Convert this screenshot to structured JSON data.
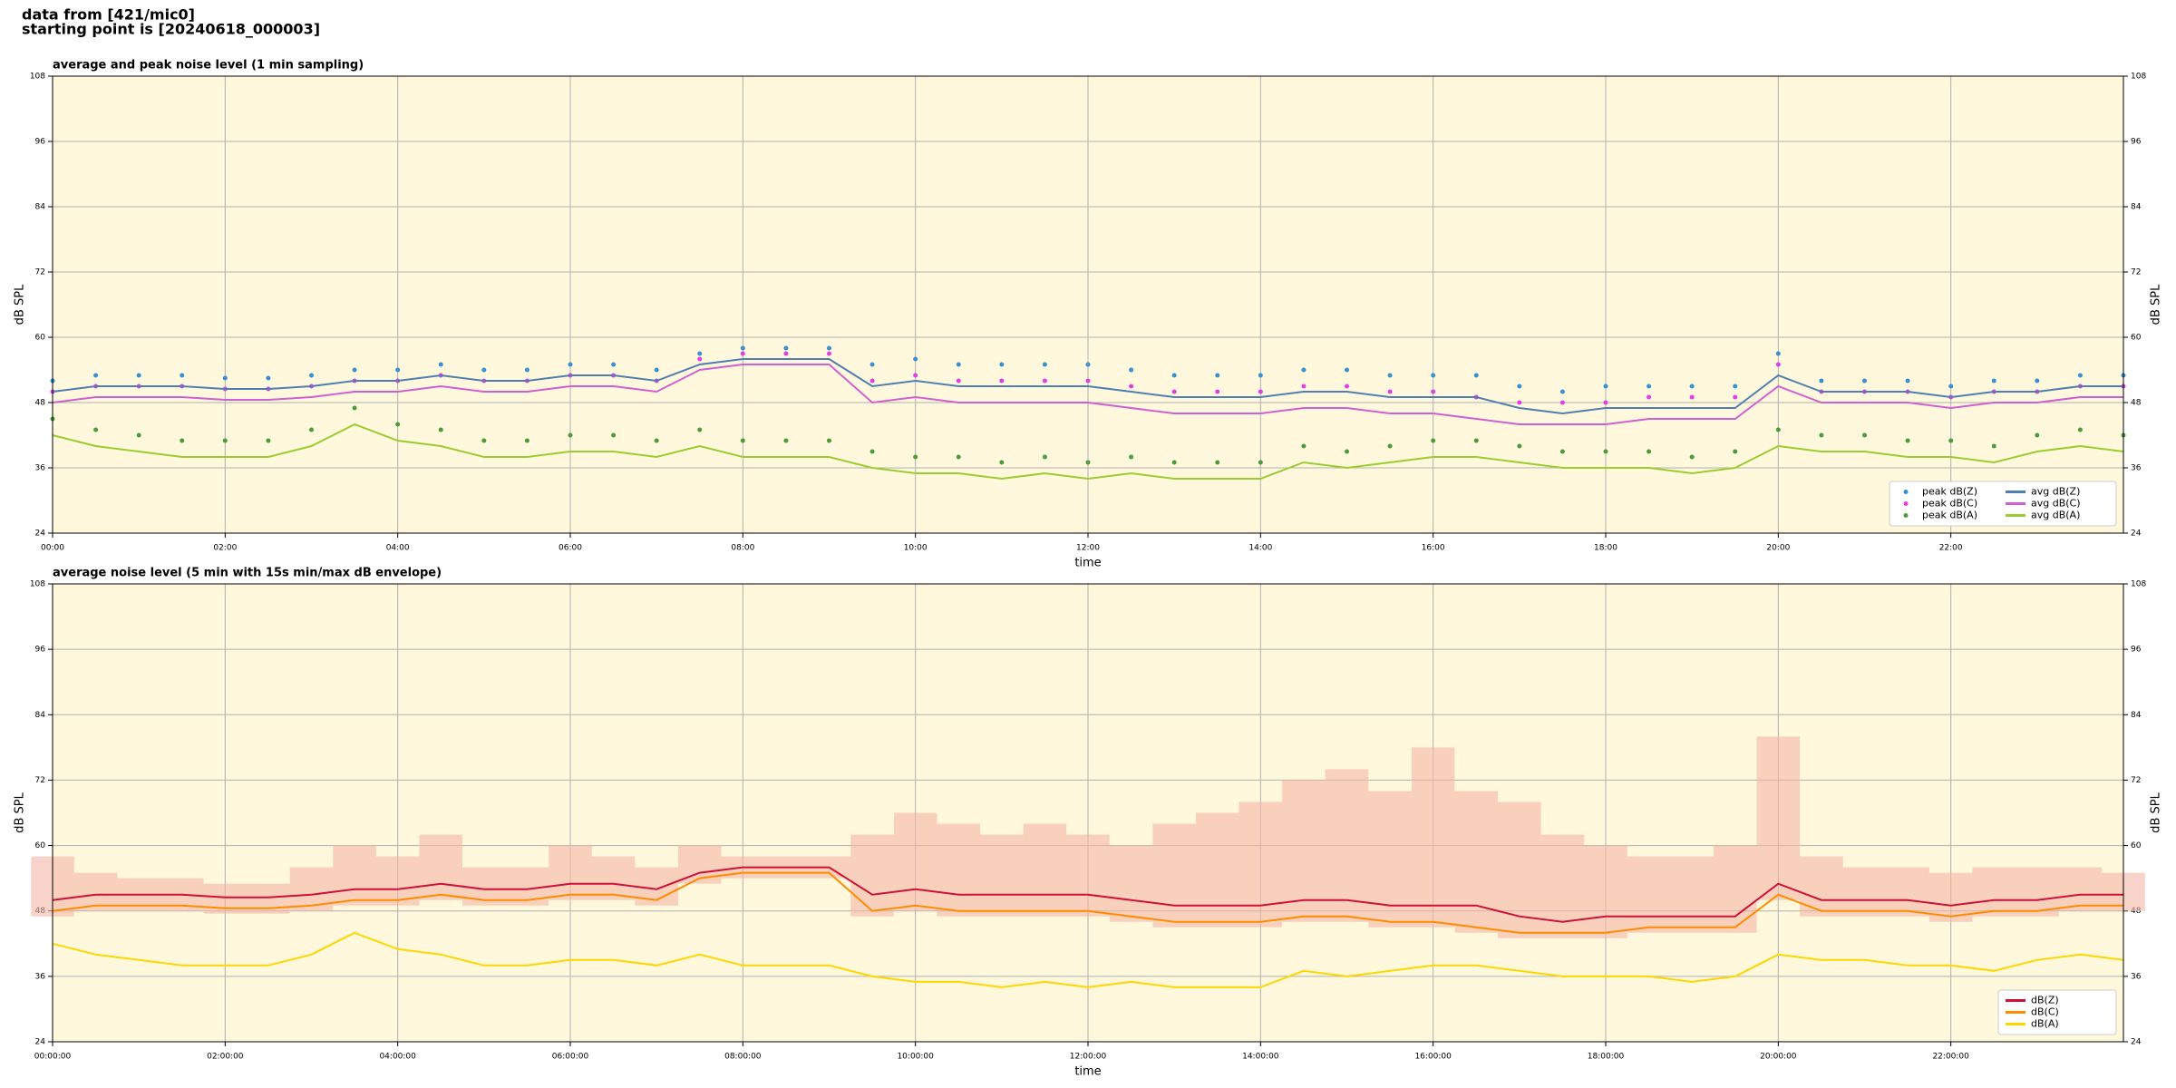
{
  "header": {
    "lines": [
      "data from [421/mic0]",
      "starting point is [20240618_000003]"
    ]
  },
  "chart_data": [
    {
      "type": "line",
      "title": "average and peak noise level (1 min sampling)",
      "xlabel": "time",
      "ylabel": "dB SPL",
      "xlim": [
        0,
        24
      ],
      "ylim": [
        24,
        108
      ],
      "yticks": [
        24,
        36,
        48,
        60,
        72,
        84,
        96,
        108
      ],
      "xticks": [
        {
          "value": 0,
          "label": "00:00"
        },
        {
          "value": 2,
          "label": "02:00"
        },
        {
          "value": 4,
          "label": "04:00"
        },
        {
          "value": 6,
          "label": "06:00"
        },
        {
          "value": 8,
          "label": "08:00"
        },
        {
          "value": 10,
          "label": "10:00"
        },
        {
          "value": 12,
          "label": "12:00"
        },
        {
          "value": 14,
          "label": "14:00"
        },
        {
          "value": 16,
          "label": "16:00"
        },
        {
          "value": 18,
          "label": "18:00"
        },
        {
          "value": 20,
          "label": "20:00"
        },
        {
          "value": 22,
          "label": "22:00"
        }
      ],
      "grid": true,
      "background": "#fff8dc",
      "legend": "lower right",
      "legend_columns": 2,
      "x": [
        0,
        0.5,
        1,
        1.5,
        2,
        2.5,
        3,
        3.5,
        4,
        4.5,
        5,
        5.5,
        6,
        6.5,
        7,
        7.5,
        8,
        8.5,
        9,
        9.5,
        10,
        10.5,
        11,
        11.5,
        12,
        12.5,
        13,
        13.5,
        14,
        14.5,
        15,
        15.5,
        16,
        16.5,
        17,
        17.5,
        18,
        18.5,
        19,
        19.5,
        20,
        20.5,
        21,
        21.5,
        22,
        22.5,
        23,
        23.5,
        24
      ],
      "series": [
        {
          "name": "peak dB(Z)",
          "type": "scatter",
          "color": "#3a8fd0",
          "values": [
            52,
            53,
            53,
            53,
            52.5,
            52.5,
            53,
            54,
            54,
            55,
            54,
            54,
            55,
            55,
            54,
            57,
            58,
            58,
            58,
            55,
            56,
            55,
            55,
            55,
            55,
            54,
            53,
            53,
            53,
            54,
            54,
            53,
            53,
            53,
            51,
            50,
            51,
            51,
            51,
            51,
            57,
            52,
            52,
            52,
            51,
            52,
            52,
            53,
            53
          ]
        },
        {
          "name": "peak dB(C)",
          "type": "scatter",
          "color": "#e040e0",
          "values": [
            50,
            51,
            51,
            51,
            50.5,
            50.5,
            51,
            52,
            52,
            53,
            52,
            52,
            53,
            53,
            52,
            56,
            57,
            57,
            57,
            52,
            53,
            52,
            52,
            52,
            52,
            51,
            50,
            50,
            50,
            51,
            51,
            50,
            50,
            49,
            48,
            48,
            48,
            49,
            49,
            49,
            55,
            50,
            50,
            50,
            49,
            50,
            50,
            51,
            51
          ]
        },
        {
          "name": "peak dB(A)",
          "type": "scatter",
          "color": "#4c9a3c",
          "values": [
            45,
            43,
            42,
            41,
            41,
            41,
            43,
            47,
            44,
            43,
            41,
            41,
            42,
            42,
            41,
            43,
            41,
            41,
            41,
            39,
            38,
            38,
            37,
            38,
            37,
            38,
            37,
            37,
            37,
            40,
            39,
            40,
            41,
            41,
            40,
            39,
            39,
            39,
            38,
            39,
            43,
            42,
            42,
            41,
            41,
            40,
            42,
            43,
            42
          ]
        },
        {
          "name": "avg dB(Z)",
          "type": "line",
          "color": "#4f7fb0",
          "values": [
            50,
            51,
            51,
            51,
            50.5,
            50.5,
            51,
            52,
            52,
            53,
            52,
            52,
            53,
            53,
            52,
            55,
            56,
            56,
            56,
            51,
            52,
            51,
            51,
            51,
            51,
            50,
            49,
            49,
            49,
            50,
            50,
            49,
            49,
            49,
            47,
            46,
            47,
            47,
            47,
            47,
            53,
            50,
            50,
            50,
            49,
            50,
            50,
            51,
            51
          ]
        },
        {
          "name": "avg dB(C)",
          "type": "line",
          "color": "#d060d0",
          "values": [
            48,
            49,
            49,
            49,
            48.5,
            48.5,
            49,
            50,
            50,
            51,
            50,
            50,
            51,
            51,
            50,
            54,
            55,
            55,
            55,
            48,
            49,
            48,
            48,
            48,
            48,
            47,
            46,
            46,
            46,
            47,
            47,
            46,
            46,
            45,
            44,
            44,
            44,
            45,
            45,
            45,
            51,
            48,
            48,
            48,
            47,
            48,
            48,
            49,
            49
          ]
        },
        {
          "name": "avg dB(A)",
          "type": "line",
          "color": "#9acd32",
          "values": [
            42,
            40,
            39,
            38,
            38,
            38,
            40,
            44,
            41,
            40,
            38,
            38,
            39,
            39,
            38,
            40,
            38,
            38,
            38,
            36,
            35,
            35,
            34,
            35,
            34,
            35,
            34,
            34,
            34,
            37,
            36,
            37,
            38,
            38,
            37,
            36,
            36,
            36,
            35,
            36,
            40,
            39,
            39,
            38,
            38,
            37,
            39,
            40,
            39
          ]
        }
      ]
    },
    {
      "type": "line",
      "title": "average noise level (5 min with 15s min/max dB envelope)",
      "xlabel": "time",
      "ylabel": "dB SPL",
      "xlim": [
        0,
        24
      ],
      "ylim": [
        24,
        108
      ],
      "yticks": [
        24,
        36,
        48,
        60,
        72,
        84,
        96,
        108
      ],
      "xticks": [
        {
          "value": 0,
          "label": "00:00:00"
        },
        {
          "value": 2,
          "label": "02:00:00"
        },
        {
          "value": 4,
          "label": "04:00:00"
        },
        {
          "value": 6,
          "label": "06:00:00"
        },
        {
          "value": 8,
          "label": "08:00:00"
        },
        {
          "value": 10,
          "label": "10:00:00"
        },
        {
          "value": 12,
          "label": "12:00:00"
        },
        {
          "value": 14,
          "label": "14:00:00"
        },
        {
          "value": 16,
          "label": "16:00:00"
        },
        {
          "value": 18,
          "label": "18:00:00"
        },
        {
          "value": 20,
          "label": "20:00:00"
        },
        {
          "value": 22,
          "label": "22:00:00"
        }
      ],
      "grid": true,
      "background": "#fff8dc",
      "legend": "lower right",
      "legend_columns": 1,
      "x": [
        0,
        0.5,
        1,
        1.5,
        2,
        2.5,
        3,
        3.5,
        4,
        4.5,
        5,
        5.5,
        6,
        6.5,
        7,
        7.5,
        8,
        8.5,
        9,
        9.5,
        10,
        10.5,
        11,
        11.5,
        12,
        12.5,
        13,
        13.5,
        14,
        14.5,
        15,
        15.5,
        16,
        16.5,
        17,
        17.5,
        18,
        18.5,
        19,
        19.5,
        20,
        20.5,
        21,
        21.5,
        22,
        22.5,
        23,
        23.5,
        24
      ],
      "envelope": {
        "color": "#f4b6a6",
        "max": [
          58,
          55,
          54,
          54,
          53,
          53,
          56,
          60,
          58,
          62,
          56,
          56,
          60,
          58,
          56,
          60,
          58,
          58,
          58,
          62,
          66,
          64,
          62,
          64,
          62,
          60,
          64,
          66,
          68,
          72,
          74,
          70,
          78,
          70,
          68,
          62,
          60,
          58,
          58,
          60,
          80,
          58,
          56,
          56,
          55,
          56,
          56,
          56,
          55
        ],
        "min": [
          47,
          48,
          48,
          48,
          47.5,
          47.5,
          48,
          49,
          49,
          50,
          49,
          49,
          50,
          50,
          49,
          53,
          54,
          54,
          54,
          47,
          48,
          47,
          47,
          47,
          47,
          46,
          45,
          45,
          45,
          46,
          46,
          45,
          45,
          44,
          43,
          43,
          43,
          44,
          44,
          44,
          50,
          47,
          47,
          47,
          46,
          47,
          47,
          48,
          48
        ]
      },
      "series": [
        {
          "name": "dB(Z)",
          "type": "line",
          "color": "#d0103a",
          "values": [
            50,
            51,
            51,
            51,
            50.5,
            50.5,
            51,
            52,
            52,
            53,
            52,
            52,
            53,
            53,
            52,
            55,
            56,
            56,
            56,
            51,
            52,
            51,
            51,
            51,
            51,
            50,
            49,
            49,
            49,
            50,
            50,
            49,
            49,
            49,
            47,
            46,
            47,
            47,
            47,
            47,
            53,
            50,
            50,
            50,
            49,
            50,
            50,
            51,
            51
          ]
        },
        {
          "name": "dB(C)",
          "type": "line",
          "color": "#ff8c00",
          "values": [
            48,
            49,
            49,
            49,
            48.5,
            48.5,
            49,
            50,
            50,
            51,
            50,
            50,
            51,
            51,
            50,
            54,
            55,
            55,
            55,
            48,
            49,
            48,
            48,
            48,
            48,
            47,
            46,
            46,
            46,
            47,
            47,
            46,
            46,
            45,
            44,
            44,
            44,
            45,
            45,
            45,
            51,
            48,
            48,
            48,
            47,
            48,
            48,
            49,
            49
          ]
        },
        {
          "name": "dB(A)",
          "type": "line",
          "color": "#ffd700",
          "values": [
            42,
            40,
            39,
            38,
            38,
            38,
            40,
            44,
            41,
            40,
            38,
            38,
            39,
            39,
            38,
            40,
            38,
            38,
            38,
            36,
            35,
            35,
            34,
            35,
            34,
            35,
            34,
            34,
            34,
            37,
            36,
            37,
            38,
            38,
            37,
            36,
            36,
            36,
            35,
            36,
            40,
            39,
            39,
            38,
            38,
            37,
            39,
            40,
            39
          ]
        }
      ]
    }
  ]
}
